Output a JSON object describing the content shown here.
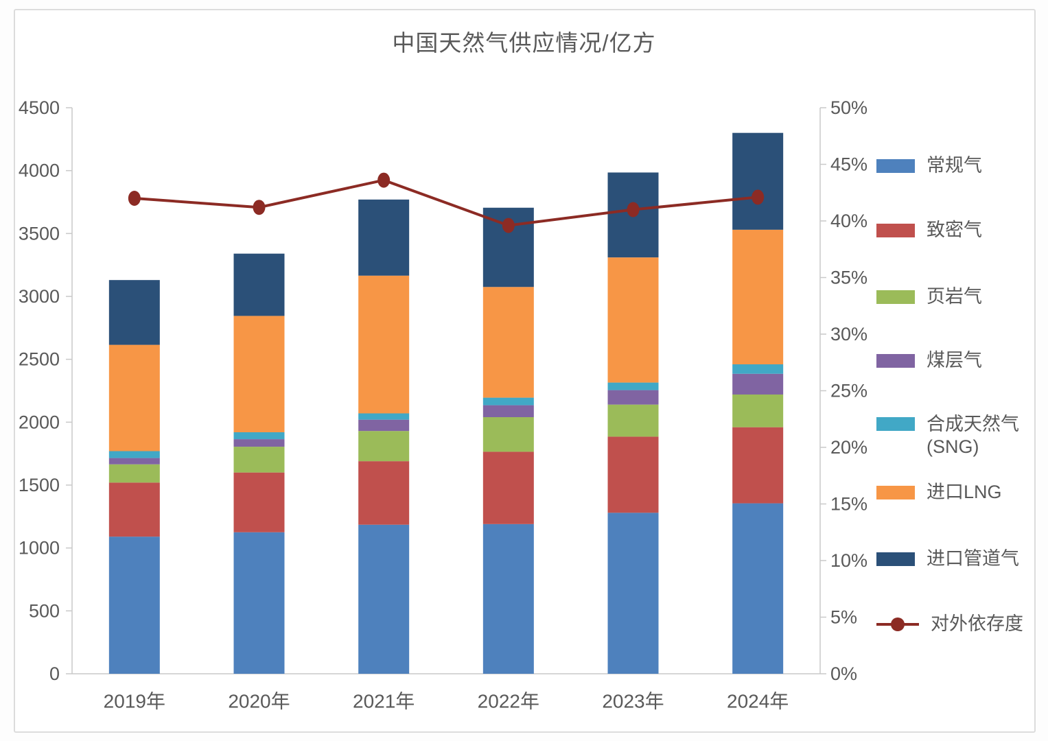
{
  "title": "中国天然气供应情况/亿方",
  "chart_data": {
    "type": "bar",
    "subtype": "stacked-bar-with-line",
    "title": "中国天然气供应情况/亿方",
    "categories": [
      "2019年",
      "2020年",
      "2021年",
      "2022年",
      "2023年",
      "2024年"
    ],
    "bar_series": [
      {
        "name": "常规气",
        "color": "#4E81BD",
        "values": [
          1090,
          1125,
          1185,
          1190,
          1280,
          1355
        ]
      },
      {
        "name": "致密气",
        "color": "#C0504D",
        "values": [
          430,
          475,
          505,
          575,
          605,
          605
        ]
      },
      {
        "name": "页岩气",
        "color": "#9BBB59",
        "values": [
          145,
          205,
          240,
          275,
          255,
          260
        ]
      },
      {
        "name": "煤层气",
        "color": "#8064A2",
        "values": [
          50,
          60,
          90,
          95,
          115,
          165
        ]
      },
      {
        "name": "合成天然气(SNG)",
        "color": "#41A8C6",
        "values": [
          55,
          55,
          50,
          60,
          60,
          75
        ]
      },
      {
        "name": "进口LNG",
        "color": "#F79646",
        "values": [
          845,
          925,
          1095,
          880,
          995,
          1070
        ]
      },
      {
        "name": "进口管道气",
        "color": "#2B5078",
        "values": [
          515,
          495,
          605,
          630,
          675,
          770
        ]
      }
    ],
    "bar_totals": [
      3130,
      3340,
      3770,
      3705,
      3985,
      4300
    ],
    "line_series": {
      "name": "对外依存度",
      "color": "#8C2B24",
      "values": [
        42.0,
        41.2,
        43.6,
        39.6,
        41.0,
        42.1
      ]
    },
    "left_axis": {
      "min": 0,
      "max": 4500,
      "step": 500,
      "tick_labels": [
        "0",
        "500",
        "1000",
        "1500",
        "2000",
        "2500",
        "3000",
        "3500",
        "4000",
        "4500"
      ]
    },
    "right_axis": {
      "min": 0,
      "max": 50,
      "step": 5,
      "tick_labels": [
        "0%",
        "5%",
        "10%",
        "15%",
        "20%",
        "25%",
        "30%",
        "35%",
        "40%",
        "45%",
        "50%"
      ]
    },
    "grid": "off",
    "legend_position": "right",
    "text_color": "#595959",
    "axis_color": "#C9C9C9"
  }
}
